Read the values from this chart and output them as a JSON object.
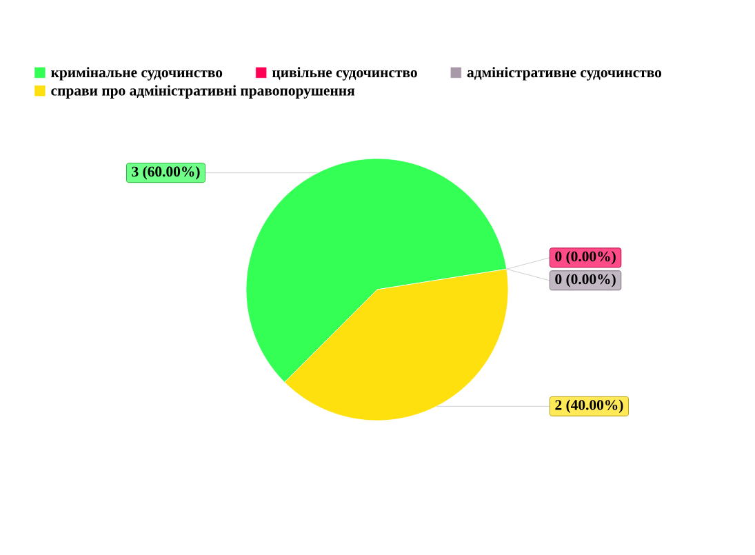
{
  "chart_data": {
    "type": "pie",
    "categories": [
      "кримінальне судочинство",
      "цивільне судочинство",
      "адміністративне судочинство",
      "справи про адміністративні правопорушення"
    ],
    "values": [
      3,
      0,
      0,
      2
    ],
    "colors": [
      "#33ff55",
      "#ff0055",
      "#a899a9",
      "#ffe00f"
    ],
    "value_labels": [
      "3 (60.00%)",
      "0 (0.00%)",
      "0 (0.00%)",
      "2 (40.00%)"
    ],
    "legend": "top"
  }
}
